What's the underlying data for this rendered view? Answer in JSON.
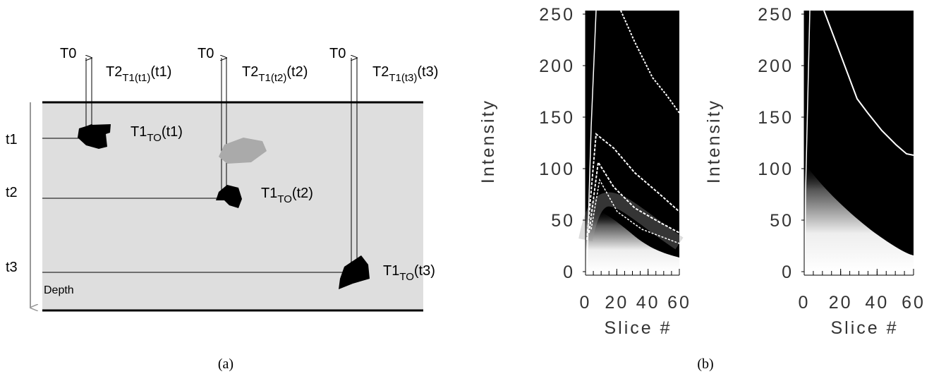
{
  "panel_a": {
    "caption": "(a)",
    "transmit_labels": [
      "T0",
      "T0",
      "T0"
    ],
    "returns": [
      {
        "main": "T2",
        "sub": "T1(t1)",
        "suffix": "(t1)"
      },
      {
        "main": "T2",
        "sub": "T1(t2)",
        "suffix": "(t2)"
      },
      {
        "main": "T2",
        "sub": "T1(t3)",
        "suffix": "(t3)"
      }
    ],
    "reflections": [
      {
        "main": "T1",
        "sub": "TO",
        "suffix": "(t1)"
      },
      {
        "main": "T1",
        "sub": "TO",
        "suffix": "(t2)"
      },
      {
        "main": "T1",
        "sub": "TO",
        "suffix": "(t3)"
      }
    ],
    "depth_labels": [
      "t1",
      "t2",
      "t3"
    ],
    "axis_label": "Depth"
  },
  "panel_b": {
    "caption": "(b)",
    "plots": [
      {
        "ylabel": "Intensity",
        "xlabel": "Slice #",
        "yticks": [
          0,
          50,
          100,
          150,
          200,
          250
        ],
        "xticks": [
          0,
          20,
          40,
          60
        ]
      },
      {
        "ylabel": "Intensity",
        "xlabel": "Slice #",
        "yticks": [
          0,
          50,
          100,
          150,
          200,
          250
        ],
        "xticks": [
          0,
          20,
          40,
          60
        ]
      }
    ]
  }
}
